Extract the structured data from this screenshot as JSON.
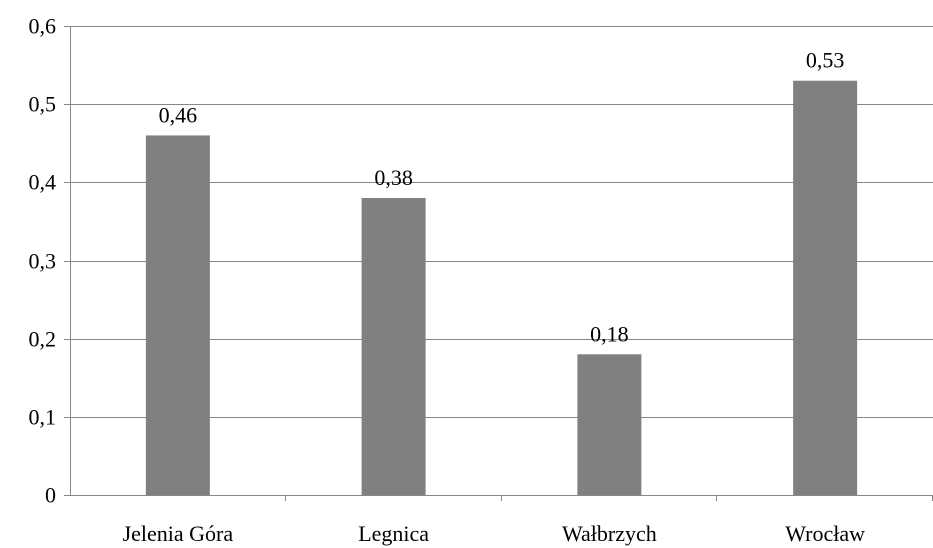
{
  "chart_data": {
    "type": "bar",
    "categories": [
      "Jelenia Góra",
      "Legnica",
      "Wałbrzych",
      "Wrocław"
    ],
    "values": [
      0.46,
      0.38,
      0.18,
      0.53
    ],
    "value_labels": [
      "0,46",
      "0,38",
      "0,18",
      "0,53"
    ],
    "ylim": [
      0,
      0.6
    ],
    "yticks": [
      0,
      0.1,
      0.2,
      0.3,
      0.4,
      0.5,
      0.6
    ],
    "ytick_labels": [
      "0",
      "0,1",
      "0,2",
      "0,3",
      "0,4",
      "0,5",
      "0,6"
    ],
    "grid": true,
    "legend": "none",
    "colors": {
      "bar": "#808080",
      "grid": "#878787",
      "axis": "#878787"
    }
  }
}
